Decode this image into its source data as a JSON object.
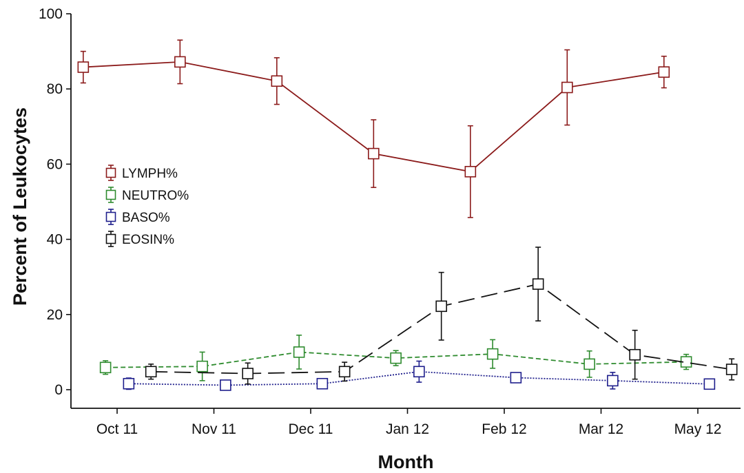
{
  "chart_data": {
    "type": "line",
    "xlabel": "Month",
    "ylabel": "Percent of Leukocytes",
    "categories": [
      "Oct 11",
      "Nov 11",
      "Dec 11",
      "Jan 12",
      "Feb 12",
      "Mar 12",
      "May 12"
    ],
    "ylim": [
      0,
      100
    ],
    "y_ticks": [
      0,
      20,
      40,
      60,
      80,
      100
    ],
    "grid": false,
    "legend_position": "left",
    "series": [
      {
        "name": "LYMPH%",
        "color": "#8B1A1A",
        "line_style": "solid",
        "offset": -0.35,
        "values": [
          85.8,
          87.2,
          82.1,
          62.8,
          58.0,
          80.4,
          84.5
        ],
        "error": [
          4.2,
          5.8,
          6.2,
          9.0,
          12.2,
          10.0,
          4.2
        ]
      },
      {
        "name": "NEUTRO%",
        "color": "#2E8B2E",
        "line_style": "dashed",
        "offset": -0.12,
        "values": [
          5.9,
          6.2,
          10.0,
          8.4,
          9.5,
          6.8,
          7.4
        ],
        "error": [
          1.8,
          3.8,
          4.5,
          2.0,
          3.8,
          3.5,
          2.0
        ]
      },
      {
        "name": "BASO%",
        "color": "#1E1E8C",
        "line_style": "dotted",
        "offset": 0.12,
        "values": [
          1.6,
          1.2,
          1.6,
          4.8,
          3.2,
          2.4,
          1.5
        ],
        "error": [
          1.5,
          0.8,
          0.8,
          2.8,
          0.8,
          2.2,
          0.8
        ]
      },
      {
        "name": "EOSIN%",
        "color": "#111111",
        "line_style": "longdash",
        "offset": 0.35,
        "values": [
          4.8,
          4.3,
          4.8,
          22.2,
          28.1,
          9.3,
          5.4
        ],
        "error": [
          2.0,
          2.8,
          2.5,
          9.0,
          9.8,
          6.5,
          2.8
        ]
      }
    ]
  }
}
